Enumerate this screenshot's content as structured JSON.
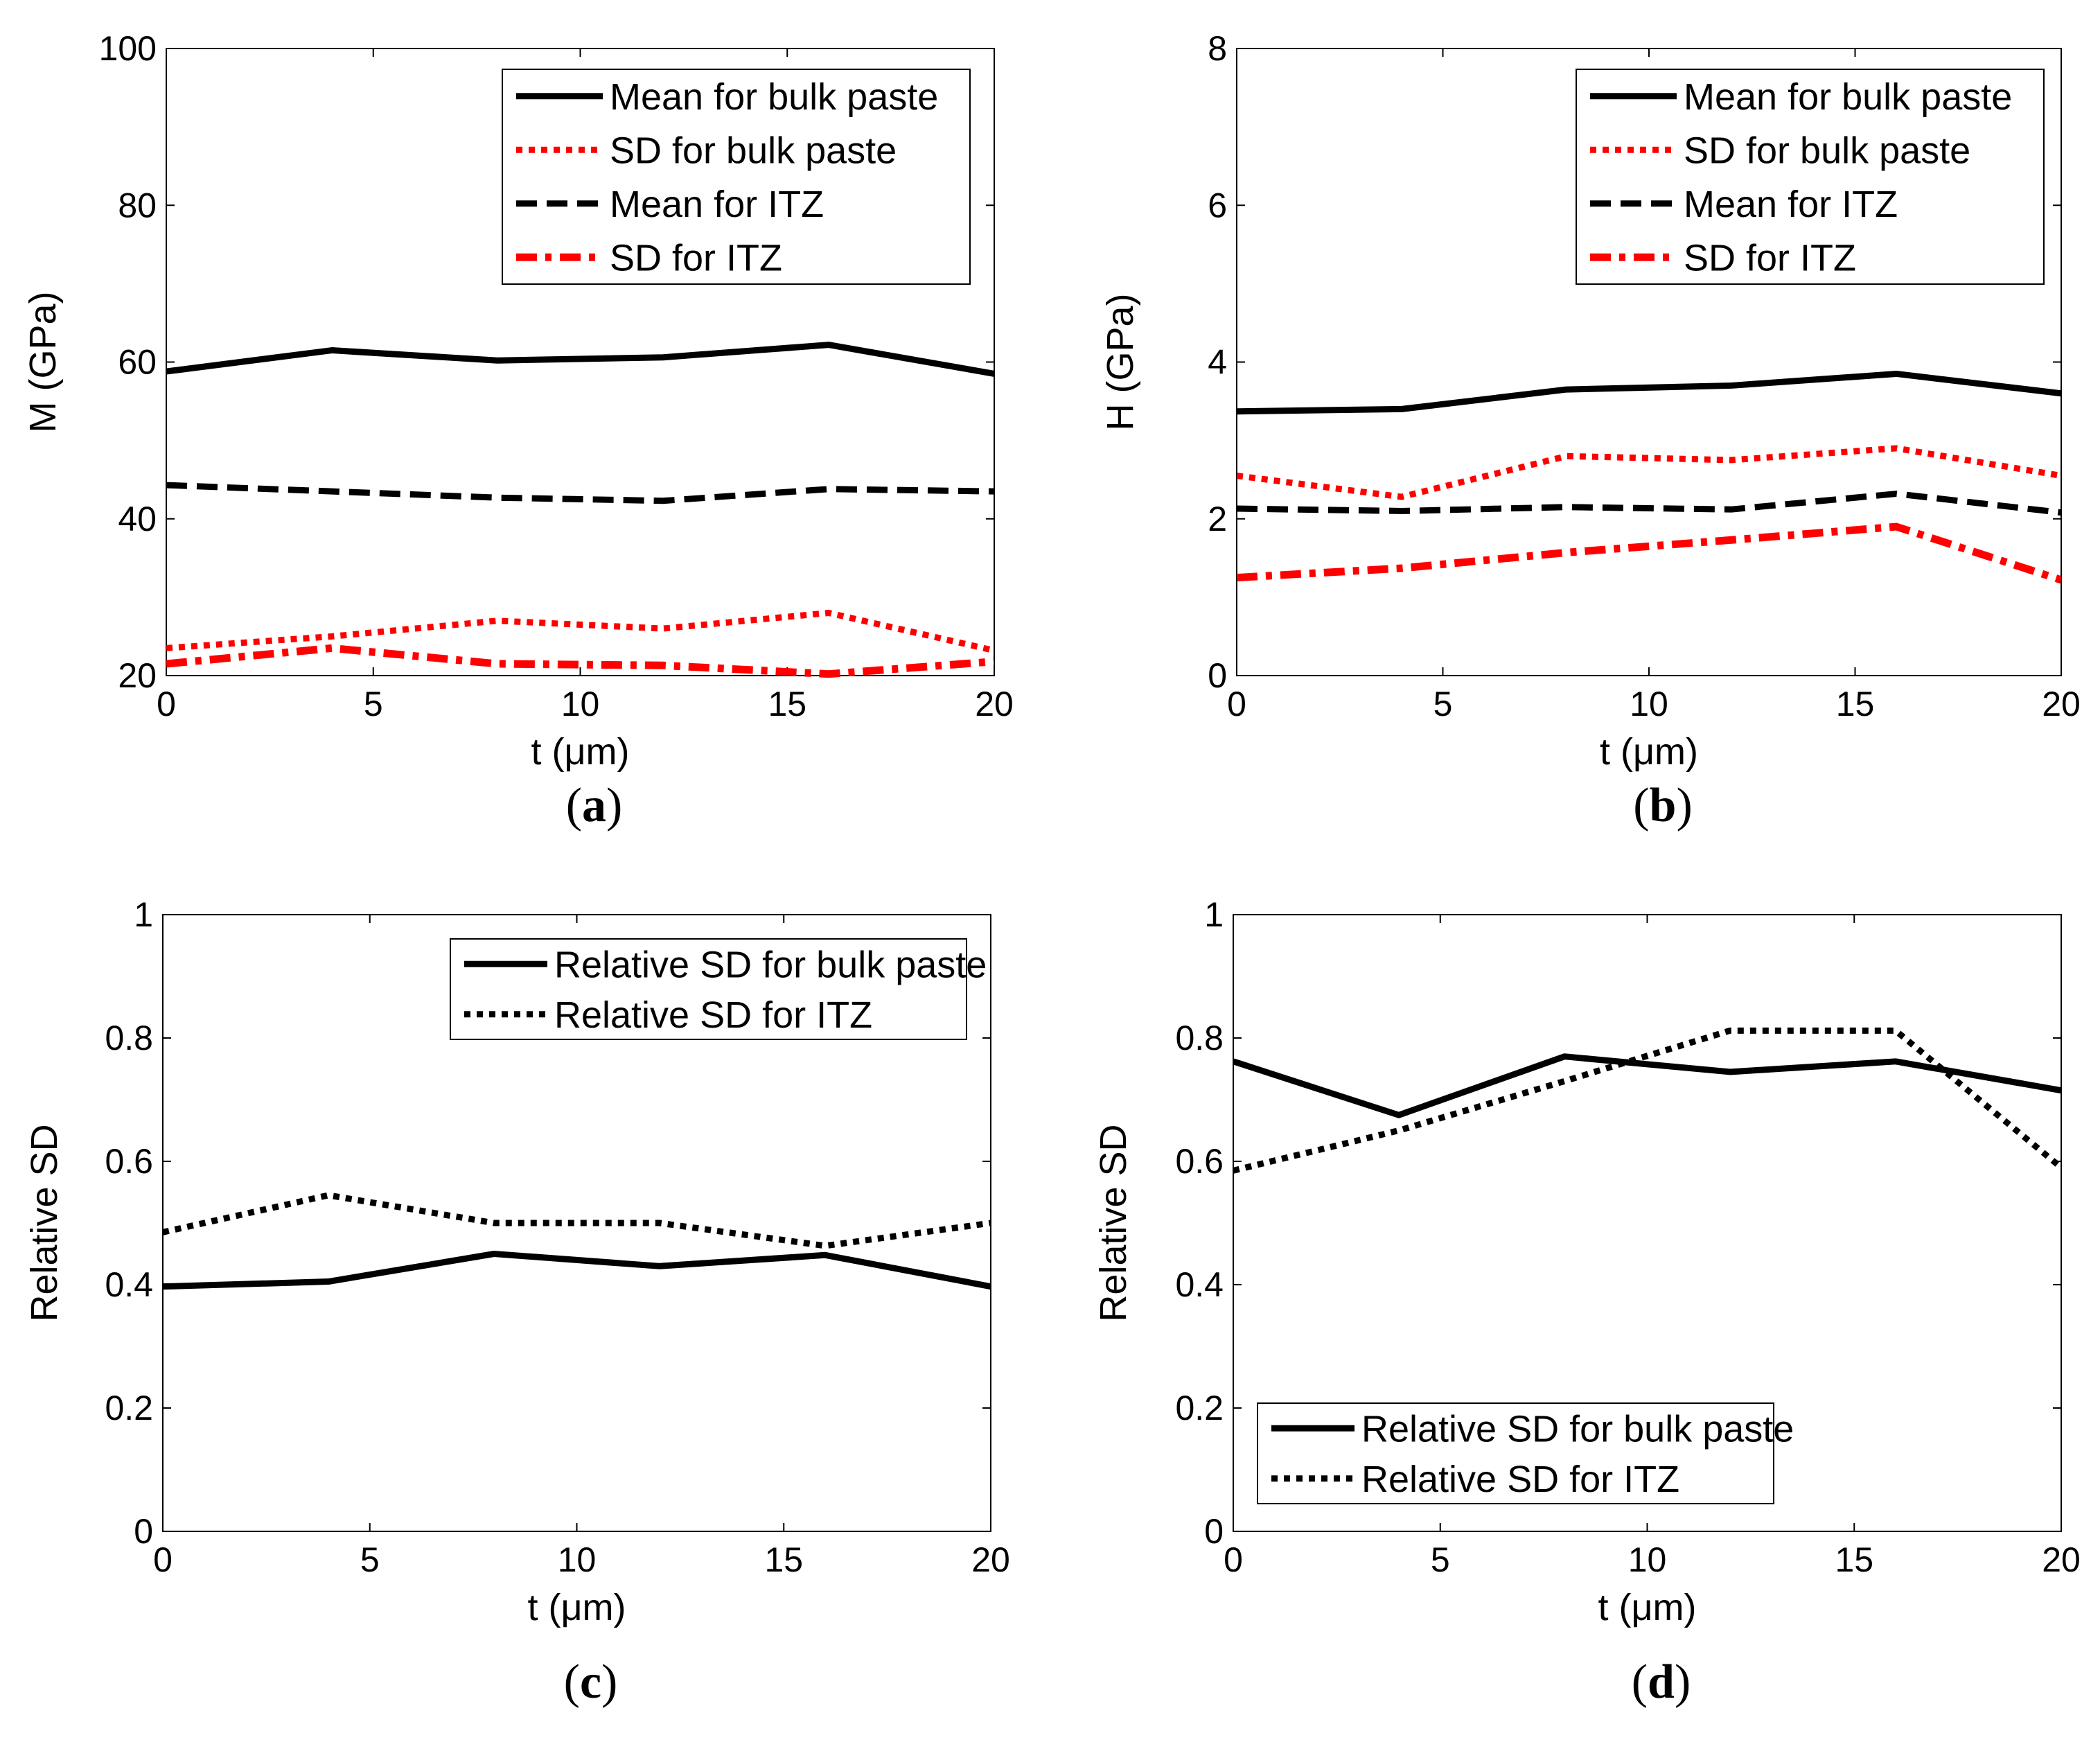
{
  "chart_data": [
    {
      "id": "a",
      "type": "line",
      "panel_label": "a",
      "xlabel": "t (μm)",
      "ylabel": "M (GPa)",
      "xlim": [
        0,
        20
      ],
      "ylim": [
        20,
        100
      ],
      "xticks": [
        0,
        5,
        10,
        15,
        20
      ],
      "yticks": [
        20,
        40,
        60,
        80,
        100
      ],
      "legend_position": "top-right",
      "x": [
        0,
        4,
        8,
        12,
        16,
        20
      ],
      "series": [
        {
          "name": "Mean for bulk paste",
          "color": "#000000",
          "style": "solid",
          "values": [
            58.8,
            61.5,
            60.2,
            60.6,
            62.2,
            58.5
          ]
        },
        {
          "name": "SD for bulk paste",
          "color": "#ff0000",
          "style": "dotted",
          "values": [
            23.5,
            25.0,
            27.0,
            26.0,
            28.0,
            23.2
          ]
        },
        {
          "name": "Mean for ITZ",
          "color": "#000000",
          "style": "dashed",
          "values": [
            44.3,
            43.5,
            42.7,
            42.3,
            43.8,
            43.5
          ]
        },
        {
          "name": "SD for ITZ",
          "color": "#ff0000",
          "style": "dashdot",
          "values": [
            21.5,
            23.5,
            21.5,
            21.3,
            20.2,
            21.8
          ]
        }
      ]
    },
    {
      "id": "b",
      "type": "line",
      "panel_label": "b",
      "xlabel": "t (μm)",
      "ylabel": "H (GPa)",
      "xlim": [
        0,
        20
      ],
      "ylim": [
        0,
        8
      ],
      "xticks": [
        0,
        5,
        10,
        15,
        20
      ],
      "yticks": [
        0,
        2,
        4,
        6,
        8
      ],
      "legend_position": "top-right",
      "x": [
        0,
        4,
        8,
        12,
        16,
        20
      ],
      "series": [
        {
          "name": "Mean for bulk paste",
          "color": "#000000",
          "style": "solid",
          "values": [
            3.37,
            3.4,
            3.65,
            3.7,
            3.85,
            3.6
          ]
        },
        {
          "name": "SD for bulk paste",
          "color": "#ff0000",
          "style": "dotted",
          "values": [
            2.55,
            2.28,
            2.8,
            2.75,
            2.9,
            2.55
          ]
        },
        {
          "name": "Mean for ITZ",
          "color": "#000000",
          "style": "dashed",
          "values": [
            2.13,
            2.1,
            2.15,
            2.12,
            2.32,
            2.08
          ]
        },
        {
          "name": "SD for ITZ",
          "color": "#ff0000",
          "style": "dashdot",
          "values": [
            1.25,
            1.37,
            1.57,
            1.73,
            1.9,
            1.22
          ]
        }
      ]
    },
    {
      "id": "c",
      "type": "line",
      "panel_label": "c",
      "xlabel": "t (μm)",
      "ylabel": "Relative  SD",
      "xlim": [
        0,
        20
      ],
      "ylim": [
        0,
        1
      ],
      "xticks": [
        0,
        5,
        10,
        15,
        20
      ],
      "yticks": [
        0,
        0.2,
        0.4,
        0.6,
        0.8,
        1
      ],
      "legend_position": "top-right",
      "x": [
        0,
        4,
        8,
        12,
        16,
        20
      ],
      "series": [
        {
          "name": "Relative SD for bulk paste",
          "color": "#000000",
          "style": "solid",
          "values": [
            0.397,
            0.405,
            0.45,
            0.43,
            0.448,
            0.397
          ]
        },
        {
          "name": "Relative SD for ITZ",
          "color": "#000000",
          "style": "dotted",
          "values": [
            0.485,
            0.545,
            0.5,
            0.5,
            0.463,
            0.5
          ]
        }
      ]
    },
    {
      "id": "d",
      "type": "line",
      "panel_label": "d",
      "xlabel": "t (μm)",
      "ylabel": "Relative  SD",
      "xlim": [
        0,
        20
      ],
      "ylim": [
        0,
        1
      ],
      "xticks": [
        0,
        5,
        10,
        15,
        20
      ],
      "yticks": [
        0,
        0.2,
        0.4,
        0.6,
        0.8,
        1
      ],
      "legend_position": "bottom-left",
      "x": [
        0,
        4,
        8,
        12,
        16,
        20
      ],
      "series": [
        {
          "name": "Relative SD for bulk paste",
          "color": "#000000",
          "style": "solid",
          "values": [
            0.762,
            0.675,
            0.77,
            0.745,
            0.762,
            0.715
          ]
        },
        {
          "name": "Relative SD for ITZ",
          "color": "#000000",
          "style": "dotted",
          "values": [
            0.585,
            0.65,
            0.73,
            0.812,
            0.812,
            0.59
          ]
        }
      ]
    }
  ]
}
